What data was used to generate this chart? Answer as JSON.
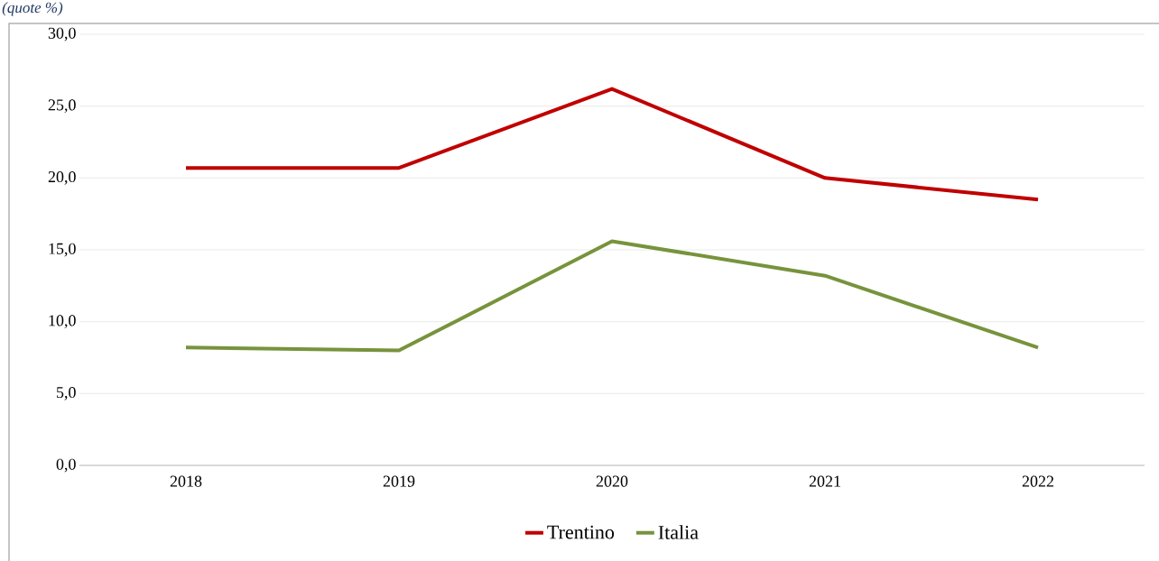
{
  "chart_data": {
    "type": "line",
    "subtitle": "(quote %)",
    "categories": [
      "2018",
      "2019",
      "2020",
      "2021",
      "2022"
    ],
    "series": [
      {
        "name": "Trentino",
        "color": "#c00000",
        "values": [
          20.7,
          20.7,
          26.2,
          20.0,
          18.5
        ]
      },
      {
        "name": "Italia",
        "color": "#77933c",
        "values": [
          8.2,
          8.0,
          15.6,
          13.2,
          8.2
        ]
      }
    ],
    "ylim": [
      0,
      30
    ],
    "yticks": [
      {
        "value": 0,
        "label": "0,0"
      },
      {
        "value": 5,
        "label": "5,0"
      },
      {
        "value": 10,
        "label": "10,0"
      },
      {
        "value": 15,
        "label": "15,0"
      },
      {
        "value": 20,
        "label": "20,0"
      },
      {
        "value": 25,
        "label": "25,0"
      },
      {
        "value": 30,
        "label": "30,0"
      }
    ],
    "grid": "y",
    "legend": "bottom",
    "marker": "none",
    "line_style": "solid"
  }
}
